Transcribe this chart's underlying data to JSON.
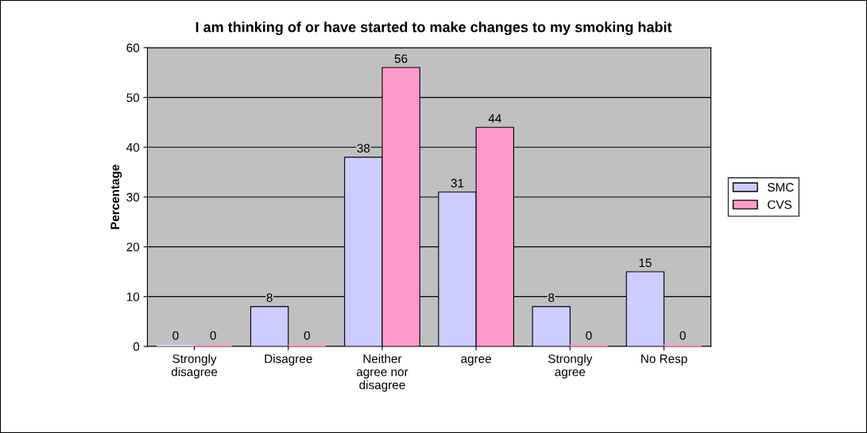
{
  "chart_data": {
    "type": "bar",
    "title": "I am thinking of or have started to make changes to my smoking habit",
    "ylabel": "Percentage",
    "categories": [
      "Strongly\ndisagree",
      "Disagree",
      "Neither\nagree nor\ndisagree",
      "agree",
      "Strongly\nagree",
      "No Resp"
    ],
    "series": [
      {
        "name": "SMC",
        "color": "#ccccff",
        "values": [
          0,
          8,
          38,
          31,
          8,
          15
        ]
      },
      {
        "name": "CVS",
        "color": "#ff99cc",
        "values": [
          0,
          0,
          56,
          44,
          0,
          0
        ]
      }
    ],
    "ylim": [
      0,
      60
    ],
    "yticks": [
      0,
      10,
      20,
      30,
      40,
      50,
      60
    ],
    "grid": "y",
    "legend": "right",
    "data_labels": true
  }
}
